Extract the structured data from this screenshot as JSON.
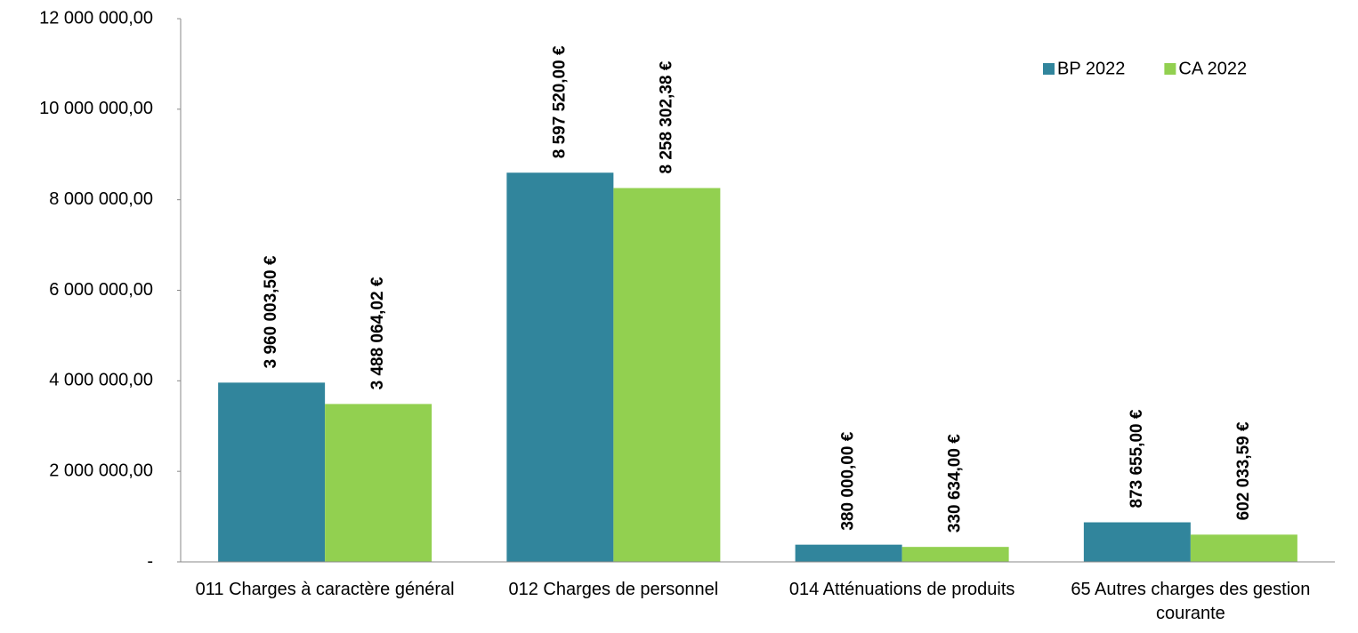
{
  "chart_data": {
    "type": "bar",
    "categories": [
      "011 Charges à caractère général",
      "012 Charges de personnel",
      "014 Atténuations de produits",
      "65 Autres charges des gestion courante"
    ],
    "series": [
      {
        "name": "BP 2022",
        "color": "#31859c",
        "values": [
          3960003.5,
          8597520.0,
          380000.0,
          873655.0
        ],
        "value_labels": [
          "3 960 003,50 €",
          "8 597 520,00 €",
          "380 000,00 €",
          "873 655,00 €"
        ]
      },
      {
        "name": "CA 2022",
        "color": "#92d050",
        "values": [
          3488064.02,
          8258302.38,
          330634.0,
          602033.59
        ],
        "value_labels": [
          "3 488 064,02 €",
          "8 258 302,38 €",
          "330 634,00 €",
          "602 033,59 €"
        ]
      }
    ],
    "ylim": [
      0,
      12000000
    ],
    "yticks": [
      {
        "value": 0,
        "label": "-"
      },
      {
        "value": 2000000,
        "label": "2 000 000,00"
      },
      {
        "value": 4000000,
        "label": "4 000 000,00"
      },
      {
        "value": 6000000,
        "label": "6 000 000,00"
      },
      {
        "value": 8000000,
        "label": "8 000 000,00"
      },
      {
        "value": 10000000,
        "label": "10 000 000,00"
      },
      {
        "value": 12000000,
        "label": "12 000 000,00"
      }
    ],
    "legend": "top-right"
  }
}
